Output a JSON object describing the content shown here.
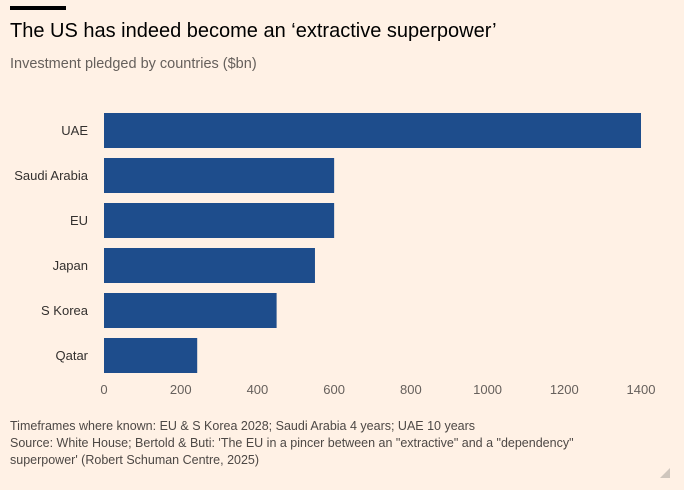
{
  "header": {
    "title": "The US has indeed become an ‘extractive superpower’",
    "subtitle": "Investment pledged by countries ($bn)"
  },
  "chart_data": {
    "type": "bar",
    "orientation": "horizontal",
    "categories": [
      "UAE",
      "Saudi Arabia",
      "EU",
      "Japan",
      "S Korea",
      "Qatar"
    ],
    "values": [
      1400,
      600,
      600,
      550,
      450,
      243
    ],
    "xlim": [
      0,
      1400
    ],
    "x_ticks": [
      "0",
      "200",
      "400",
      "600",
      "800",
      "1000",
      "1200",
      "1400"
    ],
    "grid": false,
    "bar_color": "#1e4d8c"
  },
  "footer": {
    "note": "Timeframes where known: EU & S Korea 2028; Saudi Arabia 4 years; UAE 10 years",
    "source_line1": "Source: White House; Bertold & Buti: 'The EU in a pincer between an \"extractive\" and a \"dependency\"",
    "source_line2": "superpower' (Robert Schuman Centre, 2025)"
  }
}
